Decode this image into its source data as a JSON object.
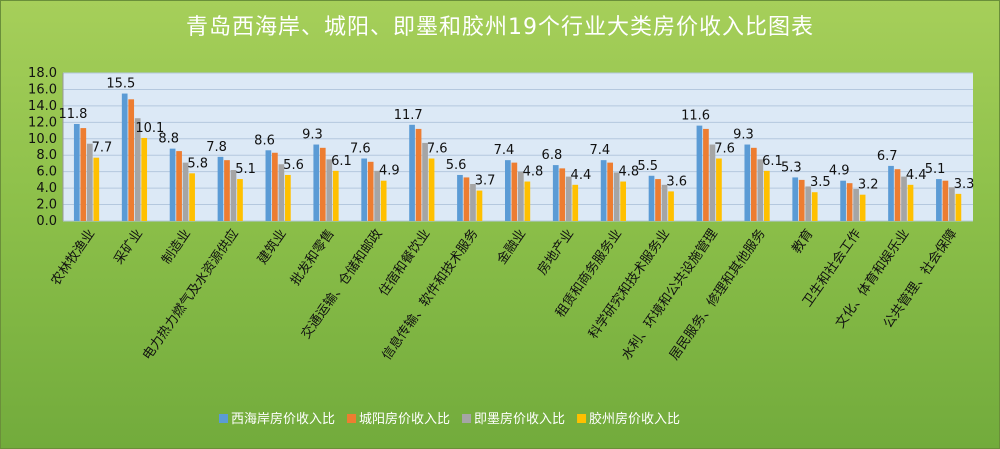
{
  "chart_data": {
    "type": "bar",
    "title": "青岛西海岸、城阳、即墨和胶州19个行业大类房价收入比图表",
    "ylim": [
      0,
      18
    ],
    "yticks": [
      "0.0",
      "2.0",
      "4.0",
      "6.0",
      "8.0",
      "10.0",
      "12.0",
      "14.0",
      "16.0",
      "18.0"
    ],
    "grid": true,
    "legend_position": "bottom",
    "categories": [
      "农林牧渔业",
      "采矿业",
      "制造业",
      "电力热力燃气及水资源供应",
      "建筑业",
      "批发和零售",
      "交通运输、仓储和邮政",
      "住宿和餐饮业",
      "信息传输、软件和技术服务",
      "金融业",
      "房地产业",
      "租赁和商务服务业",
      "科学研究和技术服务业",
      "水利、环境和公共设施管理",
      "居民服务、修理和其他服务",
      "教育",
      "卫生和社会工作",
      "文化、体育和娱乐业",
      "公共管理、社会保障"
    ],
    "series": [
      {
        "name": "西海岸房价收入比",
        "color": "#5b9bd5",
        "values": [
          11.8,
          15.5,
          8.8,
          7.8,
          8.6,
          9.3,
          7.6,
          11.7,
          5.6,
          7.4,
          6.8,
          7.4,
          5.5,
          11.6,
          9.3,
          5.3,
          4.9,
          6.7,
          5.1
        ]
      },
      {
        "name": "城阳房价收入比",
        "color": "#ed7d31",
        "values": [
          11.3,
          14.8,
          8.5,
          7.4,
          8.3,
          8.9,
          7.2,
          11.2,
          5.3,
          7.1,
          6.4,
          7.1,
          5.1,
          11.2,
          8.9,
          5.0,
          4.6,
          6.3,
          4.9
        ]
      },
      {
        "name": "即墨房价收入比",
        "color": "#a5a5a5",
        "values": [
          9.4,
          12.5,
          7.1,
          6.2,
          6.9,
          7.5,
          6.1,
          9.5,
          4.5,
          6.0,
          5.4,
          5.9,
          4.4,
          9.3,
          7.5,
          4.2,
          3.9,
          5.4,
          4.1
        ]
      },
      {
        "name": "胶州房价收入比",
        "color": "#ffc000",
        "values": [
          7.7,
          10.1,
          5.8,
          5.1,
          5.6,
          6.1,
          4.9,
          7.6,
          3.7,
          4.8,
          4.4,
          4.8,
          3.6,
          7.6,
          6.1,
          3.5,
          3.2,
          4.4,
          3.3
        ]
      }
    ],
    "labeled_series": [
      0,
      3
    ]
  }
}
